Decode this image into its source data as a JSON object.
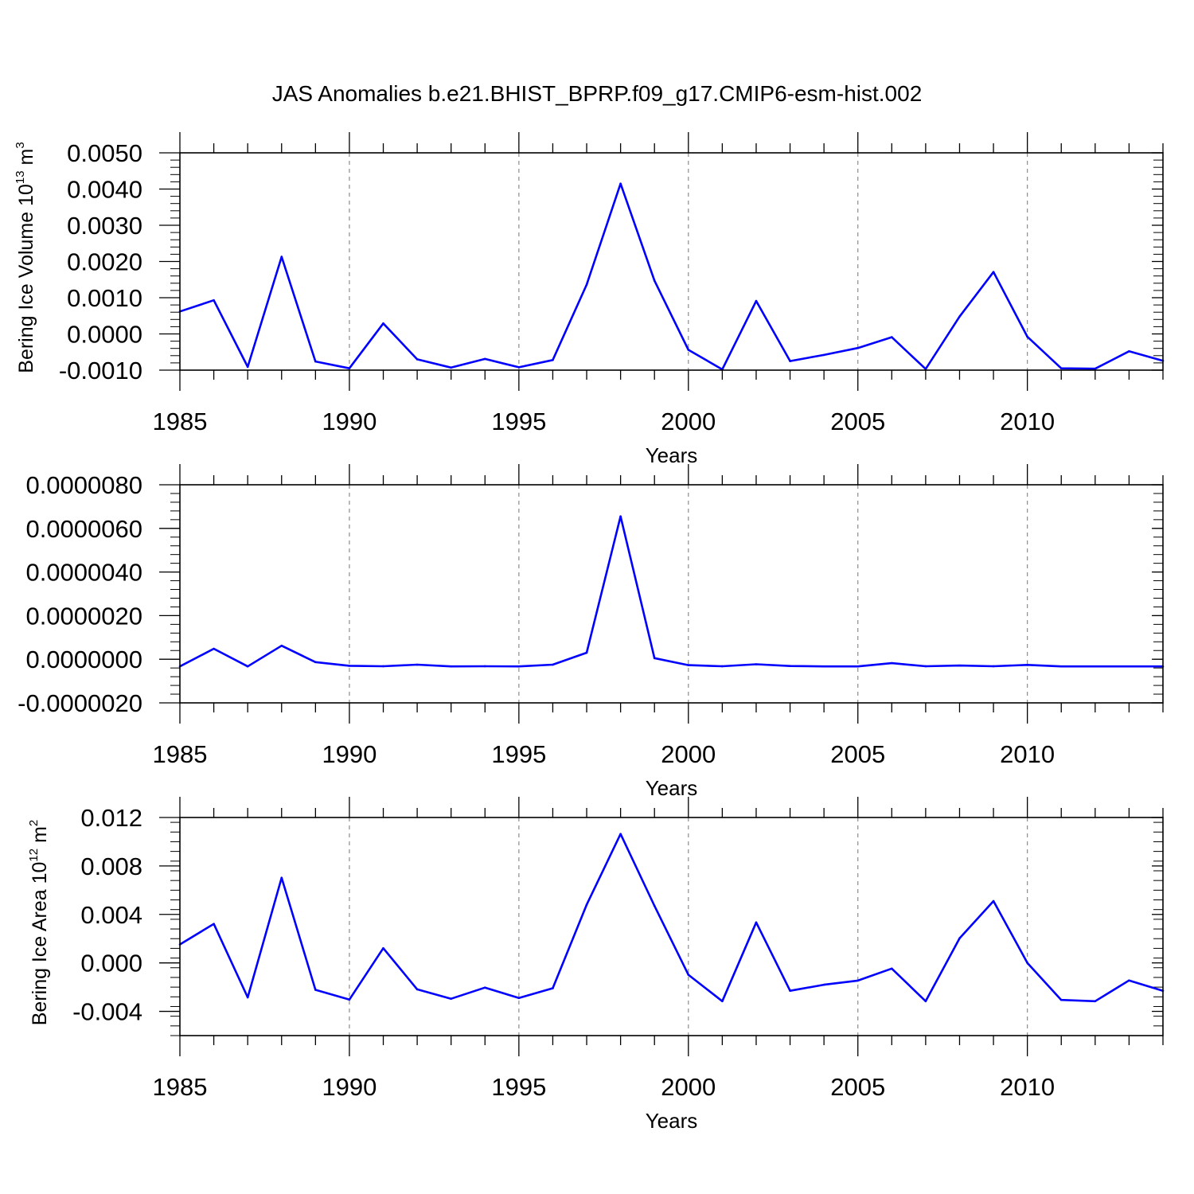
{
  "title": "JAS Anomalies b.e21.BHIST_BPRP.f09_g17.CMIP6-esm-hist.002",
  "colors": {
    "series": "#0000ff",
    "axes": "#000000",
    "grid": "#8c8c8c"
  },
  "chart_data": [
    {
      "type": "line",
      "ylabel": {
        "base": "Bering Ice Volume 10",
        "exp": "13",
        "unit": " m",
        "unit_exp": "3"
      },
      "xlabel": "Years",
      "x": [
        1985,
        1986,
        1987,
        1988,
        1989,
        1990,
        1991,
        1992,
        1993,
        1994,
        1995,
        1996,
        1997,
        1998,
        1999,
        2000,
        2001,
        2002,
        2003,
        2004,
        2005,
        2006,
        2007,
        2008,
        2009,
        2010,
        2011,
        2012,
        2013,
        2014
      ],
      "y": [
        0.00062,
        0.00093,
        -0.00091,
        0.00213,
        -0.00076,
        -0.00095,
        0.00029,
        -0.0007,
        -0.00093,
        -0.00069,
        -0.00092,
        -0.00072,
        0.00136,
        0.00415,
        0.00147,
        -0.00044,
        -0.00098,
        0.00091,
        -0.00075,
        -0.00058,
        -0.00039,
        -9e-05,
        -0.00097,
        0.00048,
        0.00171,
        -8e-05,
        -0.00095,
        -0.00096,
        -0.00048,
        -0.00074
      ],
      "xlim": [
        1985,
        2014
      ],
      "ylim": [
        -0.001,
        0.005
      ],
      "yticks": [
        "0.0050",
        "0.0040",
        "0.0030",
        "0.0020",
        "0.0010",
        "0.0000",
        "-0.0010"
      ],
      "ytick_values": [
        0.005,
        0.004,
        0.003,
        0.002,
        0.001,
        0.0,
        -0.001
      ],
      "xticks": [
        "1985",
        "1990",
        "1995",
        "2000",
        "2005",
        "2010"
      ],
      "xtick_values": [
        1985,
        1990,
        1995,
        2000,
        2005,
        2010
      ],
      "grid": "vertical dashed at major x ticks"
    },
    {
      "type": "line",
      "ylabel": null,
      "xlabel": "Years",
      "x": [
        1985,
        1986,
        1987,
        1988,
        1989,
        1990,
        1991,
        1992,
        1993,
        1994,
        1995,
        1996,
        1997,
        1998,
        1999,
        2000,
        2001,
        2002,
        2003,
        2004,
        2005,
        2006,
        2007,
        2008,
        2009,
        2010,
        2011,
        2012,
        2013,
        2014
      ],
      "y": [
        -3.3e-07,
        4.8e-07,
        -3.3e-07,
        6.2e-07,
        -1.3e-07,
        -3e-07,
        -3.2e-07,
        -2.5e-07,
        -3.3e-07,
        -3.2e-07,
        -3.3e-07,
        -2.5e-07,
        3e-07,
        6.55e-06,
        5e-08,
        -2.7e-07,
        -3.2e-07,
        -2.3e-07,
        -3.1e-07,
        -3.3e-07,
        -3.3e-07,
        -1.8e-07,
        -3.2e-07,
        -2.9e-07,
        -3.2e-07,
        -2.6e-07,
        -3.3e-07,
        -3.3e-07,
        -3.3e-07,
        -3.3e-07
      ],
      "xlim": [
        1985,
        2014
      ],
      "ylim": [
        -2e-06,
        8e-06
      ],
      "yticks": [
        "0.0000080",
        "0.0000060",
        "0.0000040",
        "0.0000020",
        "0.0000000",
        "-0.0000020"
      ],
      "ytick_values": [
        8e-06,
        6e-06,
        4e-06,
        2e-06,
        0.0,
        -2e-06
      ],
      "xticks": [
        "1985",
        "1990",
        "1995",
        "2000",
        "2005",
        "2010"
      ],
      "xtick_values": [
        1985,
        1990,
        1995,
        2000,
        2005,
        2010
      ],
      "grid": "vertical dashed at major x ticks"
    },
    {
      "type": "line",
      "ylabel": {
        "base": "Bering Ice Area 10",
        "exp": "12",
        "unit": " m",
        "unit_exp": "2"
      },
      "xlabel": "Years",
      "x": [
        1985,
        1986,
        1987,
        1988,
        1989,
        1990,
        1991,
        1992,
        1993,
        1994,
        1995,
        1996,
        1997,
        1998,
        1999,
        2000,
        2001,
        2002,
        2003,
        2004,
        2005,
        2006,
        2007,
        2008,
        2009,
        2010,
        2011,
        2012,
        2013,
        2014
      ],
      "y": [
        0.00152,
        0.00322,
        -0.00285,
        0.00703,
        -0.00222,
        -0.00303,
        0.00121,
        -0.00218,
        -0.00296,
        -0.00204,
        -0.0029,
        -0.00209,
        0.0048,
        0.01064,
        0.00471,
        -0.00098,
        -0.00316,
        0.00334,
        -0.0023,
        -0.0018,
        -0.00146,
        -0.00047,
        -0.00316,
        0.00203,
        0.0051,
        0.0,
        -0.00306,
        -0.00316,
        -0.00145,
        -0.0023
      ],
      "xlim": [
        1985,
        2014
      ],
      "ylim": [
        -0.006,
        0.012
      ],
      "yticks": [
        "0.012",
        "0.008",
        "0.004",
        "0.000",
        "-0.004"
      ],
      "ytick_values": [
        0.012,
        0.008,
        0.004,
        0.0,
        -0.004
      ],
      "xticks": [
        "1985",
        "1990",
        "1995",
        "2000",
        "2005",
        "2010"
      ],
      "xtick_values": [
        1985,
        1990,
        1995,
        2000,
        2005,
        2010
      ],
      "grid": "vertical dashed at major x ticks"
    }
  ]
}
